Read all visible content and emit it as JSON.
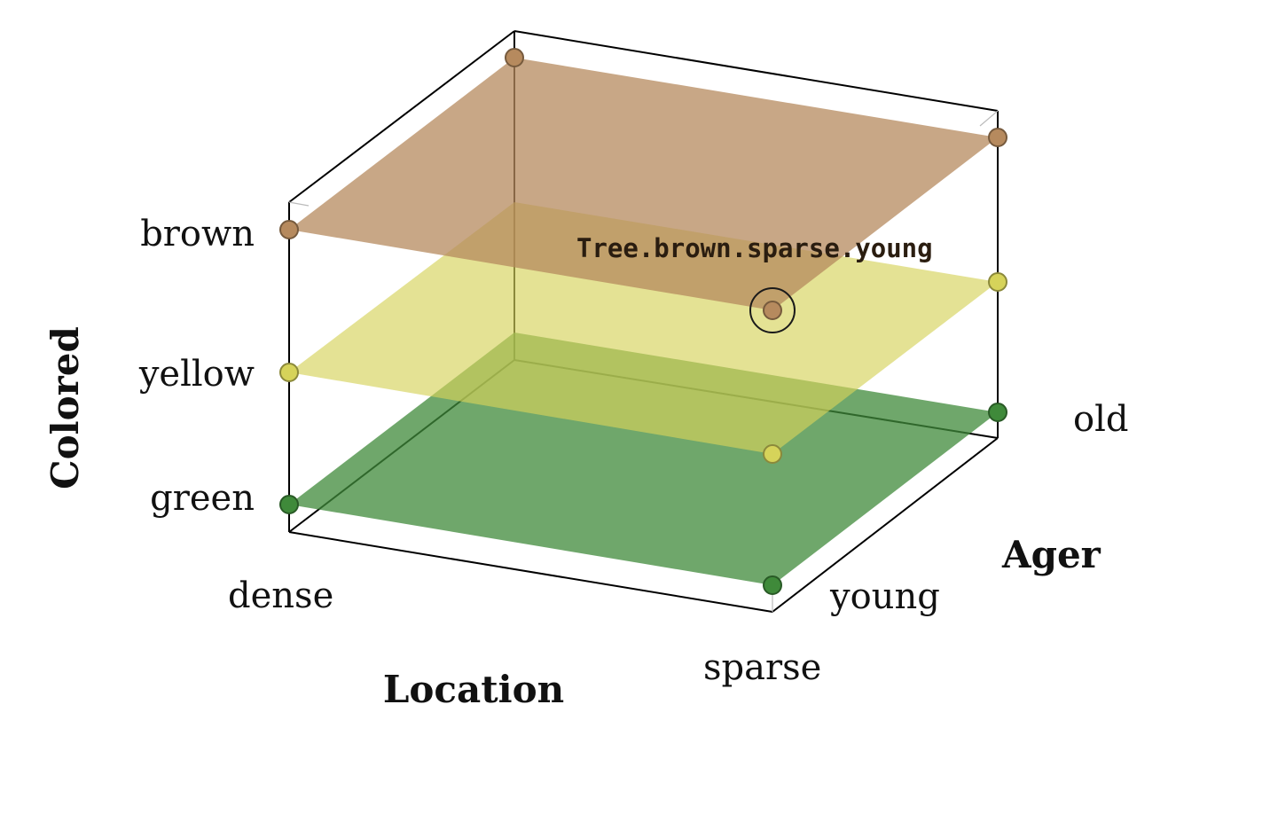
{
  "axes": {
    "vertical": {
      "title": "Colored",
      "levels": [
        "green",
        "yellow",
        "brown"
      ]
    },
    "horizontal": {
      "title": "Location",
      "levels": [
        "dense",
        "sparse"
      ]
    },
    "depth": {
      "title": "Ager",
      "levels": [
        "young",
        "old"
      ]
    }
  },
  "layer_colors": {
    "green": "#3f8a3a",
    "yellow": "#d6d35a",
    "brown": "#b68a5e"
  },
  "highlight": {
    "label": "Tree.brown.sparse.young",
    "colored": "brown",
    "location": "sparse",
    "ager": "young"
  }
}
